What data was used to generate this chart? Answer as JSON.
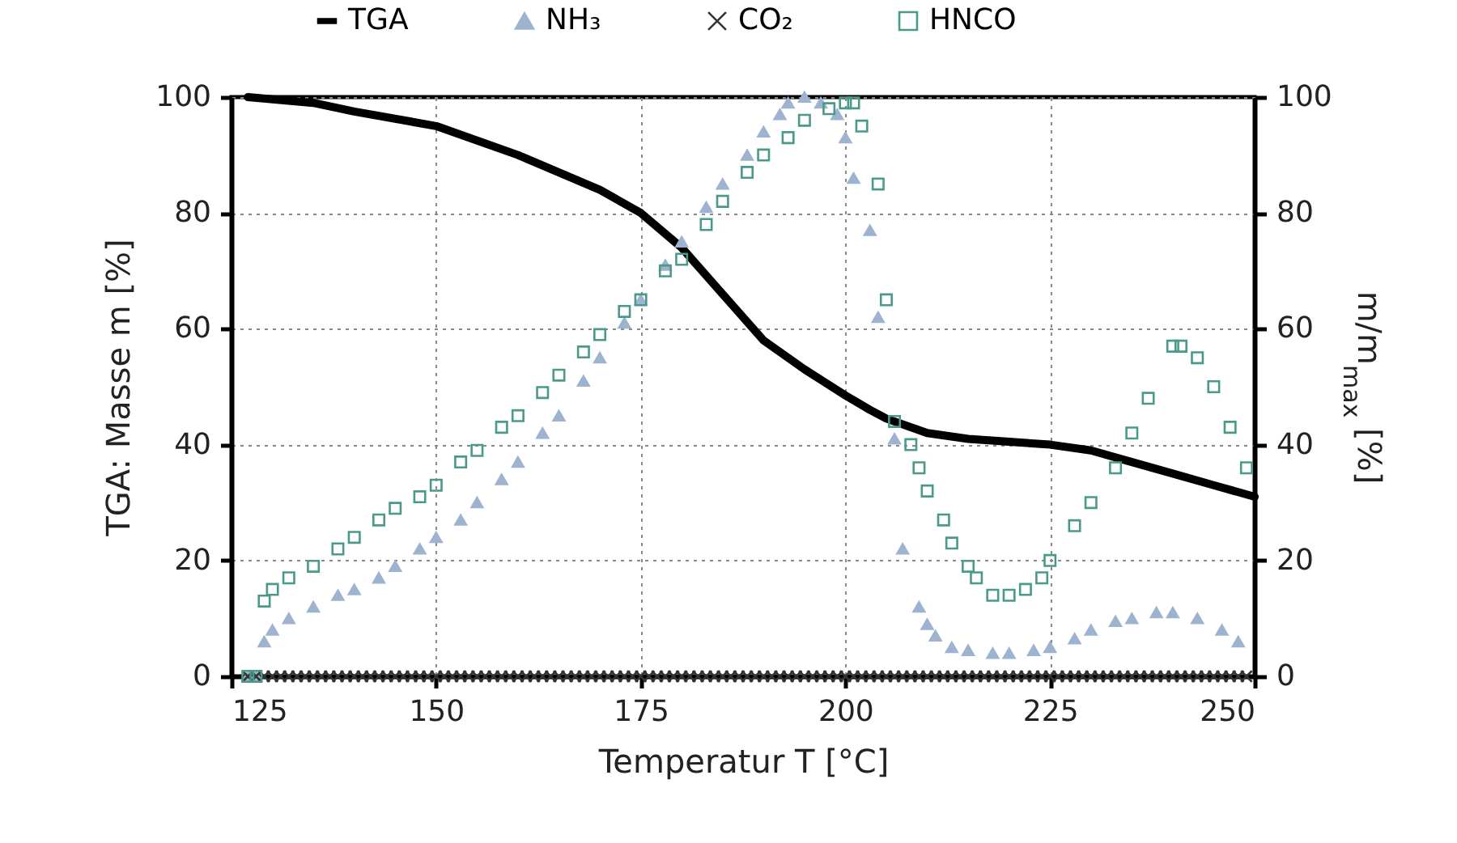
{
  "chart_data": {
    "type": "line",
    "xlabel": "Temperatur T [°C]",
    "ylabel": "TGA: Masse m [%]",
    "y2label": "m/m$_{max}$ [%]",
    "xlim": [
      125,
      250
    ],
    "xticks": [
      125,
      150,
      175,
      200,
      225,
      250
    ],
    "ylim": [
      0,
      100
    ],
    "yticks": [
      0,
      20,
      40,
      60,
      80,
      100
    ],
    "y2lim": [
      0,
      100
    ],
    "y2ticks": [
      0,
      20,
      40,
      60,
      80,
      100
    ],
    "grid": true,
    "legend": "top",
    "series": [
      {
        "name": "TGA",
        "color": "#000000",
        "line_style": "solid",
        "x": [
          127,
          135,
          140,
          150,
          160,
          170,
          175,
          180,
          185,
          190,
          195,
          200,
          203,
          205,
          210,
          215,
          220,
          225,
          230,
          235,
          240,
          245,
          250
        ],
        "values": [
          100,
          99,
          97.5,
          95,
          90,
          84,
          80,
          74,
          66,
          58,
          53,
          48.5,
          46,
          44.5,
          42,
          41,
          40.5,
          40,
          39,
          37,
          35,
          33,
          31
        ]
      },
      {
        "name": "NH₃",
        "type": "scatter",
        "marker": "triangle",
        "color": "#9db3cf",
        "axis": "y2",
        "x": [
          127,
          128,
          129,
          130,
          132,
          135,
          138,
          140,
          143,
          145,
          148,
          150,
          153,
          155,
          158,
          160,
          163,
          165,
          168,
          170,
          173,
          175,
          178,
          180,
          183,
          185,
          188,
          190,
          192,
          193,
          195,
          197,
          199,
          200,
          201,
          203,
          204,
          206,
          207,
          209,
          210,
          211,
          213,
          215,
          218,
          220,
          223,
          225,
          228,
          230,
          233,
          235,
          238,
          240,
          243,
          246,
          248
        ],
        "values": [
          0,
          0,
          6,
          8,
          10,
          12,
          14,
          15,
          17,
          19,
          22,
          24,
          27,
          30,
          34,
          37,
          42,
          45,
          51,
          55,
          61,
          65,
          71,
          75,
          81,
          85,
          90,
          94,
          97,
          99,
          100,
          99,
          97,
          93,
          86,
          77,
          62,
          41,
          22,
          12,
          9,
          7,
          5,
          4.5,
          4,
          4,
          4.5,
          5,
          6.5,
          8,
          9.5,
          10,
          11,
          11,
          10,
          8,
          6
        ]
      },
      {
        "name": "CO₂",
        "type": "scatter",
        "marker": "cross",
        "color": "#333333",
        "axis": "y2",
        "x": [
          127,
          128,
          129,
          130,
          131,
          132,
          133,
          134,
          135,
          136,
          137,
          138,
          139,
          140,
          141,
          142,
          143,
          144,
          145,
          146,
          147,
          148,
          149,
          150,
          151,
          152,
          153,
          154,
          155,
          156,
          157,
          158,
          159,
          160,
          161,
          162,
          163,
          164,
          165,
          166,
          167,
          168,
          169,
          170,
          171,
          172,
          173,
          174,
          175,
          176,
          177,
          178,
          179,
          180,
          181,
          182,
          183,
          184,
          185,
          186,
          187,
          188,
          189,
          190,
          191,
          192,
          193,
          194,
          195,
          196,
          197,
          198,
          199,
          200,
          201,
          202,
          203,
          204,
          205,
          206,
          207,
          208,
          209,
          210,
          211,
          212,
          213,
          214,
          215,
          216,
          217,
          218,
          219,
          220,
          221,
          222,
          223,
          224,
          225,
          226,
          227,
          228,
          229,
          230,
          231,
          232,
          233,
          234,
          235,
          236,
          237,
          238,
          239,
          240,
          241,
          242,
          243,
          244,
          245,
          246,
          247,
          248,
          249
        ],
        "values": [
          0,
          0,
          0,
          0,
          0,
          0,
          0,
          0,
          0,
          0,
          0,
          0,
          0,
          0,
          0,
          0,
          0,
          0,
          0,
          0,
          0,
          0,
          0,
          0,
          0,
          0,
          0,
          0,
          0,
          0,
          0,
          0,
          0,
          0,
          0,
          0,
          0,
          0,
          0,
          0,
          0,
          0,
          0,
          0,
          0,
          0,
          0,
          0,
          0,
          0,
          0,
          0,
          0,
          0,
          0,
          0,
          0,
          0,
          0,
          0,
          0,
          0,
          0,
          0,
          0,
          0,
          0,
          0,
          0,
          0,
          0,
          0,
          0,
          0,
          0,
          0,
          0,
          0,
          0,
          0,
          0,
          0,
          0,
          0,
          0,
          0,
          0,
          0,
          0,
          0,
          0,
          0,
          0,
          0,
          0,
          0,
          0,
          0,
          0,
          0,
          0,
          0,
          0,
          0,
          0,
          0,
          0,
          0,
          0,
          0,
          0,
          0,
          0,
          0,
          0,
          0,
          0,
          0,
          0,
          0,
          0,
          0,
          0
        ]
      },
      {
        "name": "HNCO",
        "type": "scatter",
        "marker": "square",
        "color": "#4a9a8a",
        "axis": "y2",
        "x": [
          127,
          128,
          129,
          130,
          132,
          135,
          138,
          140,
          143,
          145,
          148,
          150,
          153,
          155,
          158,
          160,
          163,
          165,
          168,
          170,
          173,
          175,
          178,
          180,
          183,
          185,
          188,
          190,
          193,
          195,
          198,
          200,
          201,
          202,
          204,
          205,
          206,
          208,
          209,
          210,
          212,
          213,
          215,
          216,
          218,
          220,
          222,
          224,
          225,
          228,
          230,
          233,
          235,
          237,
          240,
          241,
          243,
          245,
          247,
          249
        ],
        "values": [
          0,
          0,
          13,
          15,
          17,
          19,
          22,
          24,
          27,
          29,
          31,
          33,
          37,
          39,
          43,
          45,
          49,
          52,
          56,
          59,
          63,
          65,
          70,
          72,
          78,
          82,
          87,
          90,
          93,
          96,
          98,
          99,
          99,
          95,
          85,
          65,
          44,
          40,
          36,
          32,
          27,
          23,
          19,
          17,
          14,
          14,
          15,
          17,
          20,
          26,
          30,
          36,
          42,
          48,
          57,
          57,
          55,
          50,
          43,
          36
        ]
      }
    ]
  }
}
